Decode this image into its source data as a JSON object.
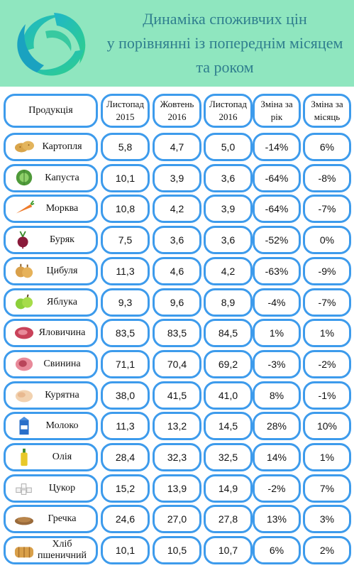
{
  "title_lines": [
    "Динаміка споживчих цін",
    "у порівнянні із попереднім місяцем",
    "та роком"
  ],
  "headers": [
    "Продукція",
    "Листопад 2015",
    "Жовтень 2016",
    "Листопад 2016",
    "Зміна за рік",
    "Зміна за місяць"
  ],
  "rows": [
    {
      "product": "Картопля",
      "icon": "potato-icon",
      "nov2015": "5,8",
      "oct2016": "4,7",
      "nov2016": "5,0",
      "year_change": "-14%",
      "month_change": "6%"
    },
    {
      "product": "Капуста",
      "icon": "cabbage-icon",
      "nov2015": "10,1",
      "oct2016": "3,9",
      "nov2016": "3,6",
      "year_change": "-64%",
      "month_change": "-8%"
    },
    {
      "product": "Морква",
      "icon": "carrot-icon",
      "nov2015": "10,8",
      "oct2016": "4,2",
      "nov2016": "3,9",
      "year_change": "-64%",
      "month_change": "-7%"
    },
    {
      "product": "Буряк",
      "icon": "beet-icon",
      "nov2015": "7,5",
      "oct2016": "3,6",
      "nov2016": "3,6",
      "year_change": "-52%",
      "month_change": "0%"
    },
    {
      "product": "Цибуля",
      "icon": "onion-icon",
      "nov2015": "11,3",
      "oct2016": "4,6",
      "nov2016": "4,2",
      "year_change": "-63%",
      "month_change": "-9%"
    },
    {
      "product": "Яблука",
      "icon": "apple-icon",
      "nov2015": "9,3",
      "oct2016": "9,6",
      "nov2016": "8,9",
      "year_change": "-4%",
      "month_change": "-7%"
    },
    {
      "product": "Яловичина",
      "icon": "beef-icon",
      "nov2015": "83,5",
      "oct2016": "83,5",
      "nov2016": "84,5",
      "year_change": "1%",
      "month_change": "1%"
    },
    {
      "product": "Свинина",
      "icon": "pork-icon",
      "nov2015": "71,1",
      "oct2016": "70,4",
      "nov2016": "69,2",
      "year_change": "-3%",
      "month_change": "-2%"
    },
    {
      "product": "Курятна",
      "icon": "chicken-icon",
      "nov2015": "38,0",
      "oct2016": "41,5",
      "nov2016": "41,0",
      "year_change": "8%",
      "month_change": "-1%"
    },
    {
      "product": "Молоко",
      "icon": "milk-icon",
      "nov2015": "11,3",
      "oct2016": "13,2",
      "nov2016": "14,5",
      "year_change": "28%",
      "month_change": "10%"
    },
    {
      "product": "Олія",
      "icon": "oil-bottle-icon",
      "nov2015": "28,4",
      "oct2016": "32,3",
      "nov2016": "32,5",
      "year_change": "14%",
      "month_change": "1%"
    },
    {
      "product": "Цукор",
      "icon": "sugar-icon",
      "nov2015": "15,2",
      "oct2016": "13,9",
      "nov2016": "14,9",
      "year_change": "-2%",
      "month_change": "7%"
    },
    {
      "product": "Гречка",
      "icon": "buckwheat-icon",
      "nov2015": "24,6",
      "oct2016": "27,0",
      "nov2016": "27,8",
      "year_change": "13%",
      "month_change": "3%"
    },
    {
      "product": "Хліб пшеничний",
      "icon": "bread-icon",
      "nov2015": "10,1",
      "oct2016": "10,5",
      "nov2016": "10,7",
      "year_change": "6%",
      "month_change": "2%"
    }
  ]
}
